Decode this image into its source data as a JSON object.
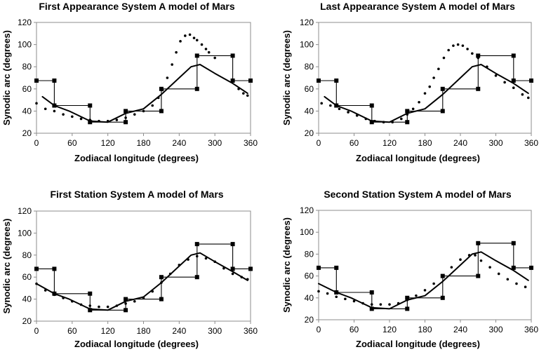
{
  "chart_data": [
    {
      "type": "line",
      "title": "First Appearance System A model of Mars",
      "xlabel": "Zodiacal longitude (degrees)",
      "ylabel": "Synodic arc (degrees)",
      "xlim": [
        0,
        360
      ],
      "ylim": [
        20,
        120
      ],
      "xticks": [
        0,
        60,
        120,
        180,
        240,
        300,
        360
      ],
      "yticks": [
        20,
        40,
        60,
        80,
        100,
        120
      ],
      "grid": false,
      "series": [
        {
          "style": "step",
          "x": [
            0,
            30,
            30,
            90,
            90,
            150,
            150,
            210,
            210,
            270,
            270,
            330,
            330,
            360
          ],
          "y": [
            67.5,
            67.5,
            45,
            45,
            30,
            30,
            40,
            40,
            60,
            60,
            90,
            90,
            67.5,
            67.5
          ]
        },
        {
          "style": "solid",
          "x": [
            10,
            30,
            55,
            90,
            120,
            150,
            180,
            210,
            240,
            260,
            275,
            300,
            330,
            355
          ],
          "y": [
            53,
            45,
            40,
            31,
            30,
            38,
            42,
            55,
            70,
            80,
            82,
            74,
            65,
            56
          ]
        },
        {
          "style": "dotted",
          "x": [
            0,
            15,
            30,
            45,
            60,
            75,
            90,
            105,
            120,
            135,
            150,
            165,
            180,
            195,
            205,
            212,
            220,
            228,
            235,
            242,
            250,
            258,
            265,
            270,
            278,
            285,
            290,
            300,
            340,
            348,
            355
          ],
          "y": [
            47,
            42,
            40,
            37,
            35,
            33,
            32,
            31,
            31,
            32,
            34,
            37,
            40,
            45,
            52,
            59,
            70,
            82,
            93,
            103,
            108,
            109,
            106,
            104,
            100,
            96,
            93,
            88,
            60,
            56,
            54
          ]
        }
      ]
    },
    {
      "type": "line",
      "title": "Last Appearance System A model of Mars",
      "xlabel": "Zodiacal longitude (degrees)",
      "ylabel": "Synodic arc (degrees)",
      "xlim": [
        0,
        360
      ],
      "ylim": [
        20,
        120
      ],
      "xticks": [
        0,
        60,
        120,
        180,
        240,
        300,
        360
      ],
      "yticks": [
        20,
        40,
        60,
        80,
        100,
        120
      ],
      "grid": false,
      "series": [
        {
          "style": "step",
          "x": [
            0,
            30,
            30,
            90,
            90,
            150,
            150,
            210,
            210,
            270,
            270,
            330,
            330,
            360
          ],
          "y": [
            67.5,
            67.5,
            45,
            45,
            30,
            30,
            40,
            40,
            60,
            60,
            90,
            90,
            67.5,
            67.5
          ]
        },
        {
          "style": "solid",
          "x": [
            10,
            30,
            55,
            90,
            120,
            150,
            180,
            210,
            240,
            260,
            275,
            300,
            330,
            355
          ],
          "y": [
            53,
            45,
            40,
            31,
            30,
            38,
            42,
            55,
            70,
            80,
            82,
            74,
            65,
            56
          ]
        },
        {
          "style": "dotted",
          "x": [
            5,
            20,
            35,
            50,
            65,
            80,
            95,
            110,
            125,
            140,
            150,
            160,
            170,
            180,
            188,
            195,
            203,
            212,
            220,
            228,
            236,
            244,
            252,
            260,
            270,
            285,
            300,
            315,
            330,
            345,
            355
          ],
          "y": [
            47,
            45,
            42,
            39,
            36,
            33,
            31,
            30,
            30,
            33,
            37,
            42,
            48,
            56,
            62,
            70,
            78,
            88,
            95,
            99,
            100,
            99,
            96,
            92,
            88,
            80,
            72,
            66,
            61,
            55,
            52
          ]
        }
      ]
    },
    {
      "type": "line",
      "title": "First Station System A model of Mars",
      "xlabel": "Zodiacal longitude (degrees)",
      "ylabel": "Synodic arc (degrees)",
      "xlim": [
        0,
        360
      ],
      "ylim": [
        20,
        120
      ],
      "xticks": [
        0,
        60,
        120,
        180,
        240,
        300,
        360
      ],
      "yticks": [
        20,
        40,
        60,
        80,
        100,
        120
      ],
      "grid": false,
      "series": [
        {
          "style": "step",
          "x": [
            0,
            30,
            30,
            90,
            90,
            150,
            150,
            210,
            210,
            270,
            270,
            330,
            330,
            360
          ],
          "y": [
            67.5,
            67.5,
            45,
            45,
            30,
            30,
            40,
            40,
            60,
            60,
            90,
            90,
            67.5,
            67.5
          ]
        },
        {
          "style": "solid",
          "x": [
            0,
            30,
            55,
            90,
            120,
            150,
            180,
            210,
            240,
            260,
            275,
            300,
            330,
            355
          ],
          "y": [
            54,
            45,
            40,
            31,
            30,
            38,
            42,
            55,
            70,
            80,
            82,
            74,
            65,
            57
          ]
        },
        {
          "style": "dotted",
          "x": [
            0,
            15,
            30,
            45,
            60,
            75,
            90,
            105,
            120,
            135,
            150,
            165,
            180,
            195,
            210,
            225,
            240,
            255,
            270,
            285,
            300,
            315,
            330,
            345,
            355
          ],
          "y": [
            54,
            48,
            44,
            41,
            38,
            35,
            34,
            33,
            33,
            34,
            36,
            38,
            41,
            47,
            55,
            63,
            71,
            76,
            79,
            77,
            74,
            68,
            63,
            60,
            58
          ]
        }
      ]
    },
    {
      "type": "line",
      "title": "Second Station System A model of Mars",
      "xlabel": "Zodiacal longitude (degrees)",
      "ylabel": "Synodic arc (degrees)",
      "xlim": [
        0,
        360
      ],
      "ylim": [
        20,
        120
      ],
      "xticks": [
        0,
        60,
        120,
        180,
        240,
        300,
        360
      ],
      "yticks": [
        20,
        40,
        60,
        80,
        100,
        120
      ],
      "grid": false,
      "series": [
        {
          "style": "step",
          "x": [
            0,
            30,
            30,
            90,
            90,
            150,
            150,
            210,
            210,
            270,
            270,
            330,
            330,
            360
          ],
          "y": [
            67.5,
            67.5,
            45,
            45,
            30,
            30,
            40,
            40,
            60,
            60,
            90,
            90,
            67.5,
            67.5
          ]
        },
        {
          "style": "solid",
          "x": [
            0,
            30,
            55,
            90,
            120,
            150,
            180,
            210,
            240,
            260,
            275,
            300,
            330,
            355
          ],
          "y": [
            53,
            45,
            40,
            31,
            30,
            38,
            42,
            55,
            70,
            80,
            82,
            74,
            65,
            56
          ]
        },
        {
          "style": "dotted",
          "x": [
            0,
            15,
            30,
            45,
            60,
            75,
            90,
            105,
            120,
            135,
            150,
            165,
            180,
            195,
            210,
            225,
            240,
            255,
            265,
            275,
            290,
            305,
            320,
            335,
            350
          ],
          "y": [
            46,
            44,
            41,
            39,
            37,
            35,
            34,
            34,
            34,
            35,
            38,
            42,
            47,
            53,
            60,
            68,
            75,
            79,
            79,
            74,
            68,
            62,
            57,
            53,
            50
          ]
        }
      ]
    }
  ]
}
